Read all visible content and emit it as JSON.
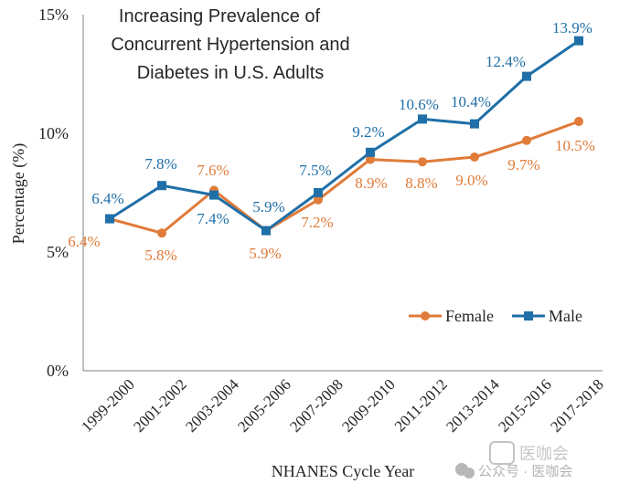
{
  "chart_data": {
    "type": "line",
    "title_lines": [
      "Increasing Prevalence of",
      "Concurrent Hypertension and",
      "Diabetes in U.S. Adults"
    ],
    "xlabel": "NHANES Cycle Year",
    "ylabel": "Percentage (%)",
    "ylim": [
      0,
      15
    ],
    "yticks": [
      0,
      5,
      10,
      15
    ],
    "ytick_labels": [
      "0%",
      "5%",
      "10%",
      "15%"
    ],
    "categories": [
      "1999-2000",
      "2001-2002",
      "2003-2004",
      "2005-2006",
      "2007-2008",
      "2009-2010",
      "2011-2012",
      "2013-2014",
      "2015-2016",
      "2017-2018"
    ],
    "series": [
      {
        "name": "Female",
        "color": "#E07B39",
        "marker": "circle",
        "values": [
          6.4,
          5.8,
          7.6,
          5.9,
          7.2,
          8.9,
          8.8,
          9.0,
          9.7,
          10.5
        ],
        "labels": [
          "6.4%",
          "5.8%",
          "7.6%",
          "5.9%",
          "7.2%",
          "8.9%",
          "8.8%",
          "9.0%",
          "9.7%",
          "10.5%"
        ]
      },
      {
        "name": "Male",
        "color": "#1F6FA8",
        "marker": "square",
        "values": [
          6.4,
          7.8,
          7.4,
          5.9,
          7.5,
          9.2,
          10.6,
          10.4,
          12.4,
          13.9
        ],
        "labels": [
          "6.4%",
          "7.8%",
          "7.4%",
          "5.9%",
          "7.5%",
          "9.2%",
          "10.6%",
          "10.4%",
          "12.4%",
          "13.9%"
        ]
      }
    ],
    "legend": {
      "position": "lower-right",
      "entries": [
        "Female",
        "Male"
      ]
    },
    "grid": false
  },
  "watermark": {
    "logo_text": "医咖会",
    "caption": "公众号 · 医咖会"
  }
}
